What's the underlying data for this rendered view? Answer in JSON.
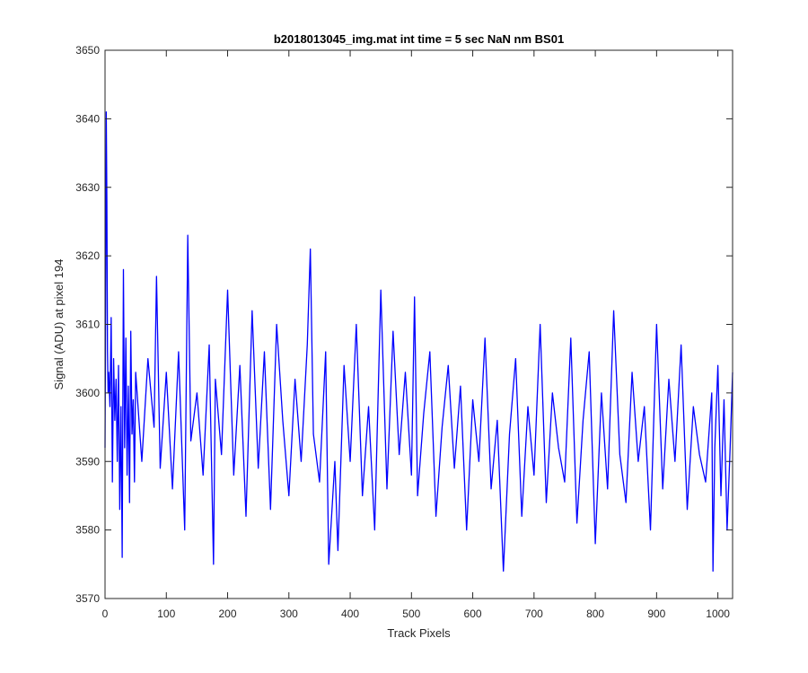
{
  "chart_data": {
    "type": "line",
    "title": "b2018013045_img.mat int time = 5 sec  NaN nm BS01",
    "xlabel": "Track Pixels",
    "ylabel": "Signal (ADU) at pixel 194",
    "xlim": [
      0,
      1024
    ],
    "ylim": [
      3570,
      3650
    ],
    "xticks": [
      0,
      100,
      200,
      300,
      400,
      500,
      600,
      700,
      800,
      900,
      1000
    ],
    "yticks": [
      3570,
      3580,
      3590,
      3600,
      3610,
      3620,
      3630,
      3640,
      3650
    ],
    "grid": false,
    "legend": "none",
    "series": [
      {
        "color": "#0000ff",
        "x": [
          0,
          1,
          2,
          3,
          4,
          5,
          6,
          8,
          10,
          12,
          14,
          16,
          18,
          20,
          22,
          24,
          26,
          28,
          30,
          32,
          34,
          36,
          38,
          40,
          42,
          44,
          46,
          48,
          50,
          60,
          70,
          80,
          84,
          90,
          100,
          110,
          120,
          130,
          135,
          140,
          150,
          160,
          170,
          177,
          180,
          190,
          200,
          210,
          220,
          230,
          240,
          250,
          260,
          270,
          280,
          290,
          300,
          310,
          320,
          330,
          335,
          340,
          350,
          360,
          365,
          375,
          380,
          390,
          400,
          410,
          420,
          430,
          440,
          450,
          460,
          470,
          480,
          490,
          500,
          505,
          510,
          520,
          530,
          540,
          550,
          560,
          570,
          580,
          590,
          600,
          610,
          620,
          630,
          640,
          650,
          660,
          670,
          680,
          690,
          700,
          710,
          720,
          730,
          740,
          750,
          760,
          770,
          780,
          790,
          800,
          810,
          820,
          830,
          840,
          850,
          860,
          870,
          880,
          890,
          900,
          910,
          920,
          930,
          940,
          950,
          960,
          970,
          980,
          990,
          992,
          995,
          1000,
          1005,
          1010,
          1015,
          1020,
          1024
        ],
        "values": [
          3592,
          3612,
          3641,
          3628,
          3606,
          3600,
          3603,
          3598,
          3611,
          3587,
          3605,
          3596,
          3602,
          3590,
          3604,
          3583,
          3598,
          3576,
          3618,
          3592,
          3608,
          3588,
          3601,
          3584,
          3609,
          3594,
          3599,
          3587,
          3603,
          3590,
          3605,
          3595,
          3617,
          3589,
          3603,
          3586,
          3606,
          3580,
          3623,
          3593,
          3600,
          3588,
          3607,
          3575,
          3602,
          3591,
          3615,
          3588,
          3604,
          3582,
          3612,
          3589,
          3606,
          3583,
          3610,
          3596,
          3585,
          3602,
          3590,
          3607,
          3621,
          3594,
          3587,
          3606,
          3575,
          3590,
          3577,
          3604,
          3590,
          3610,
          3585,
          3598,
          3580,
          3615,
          3586,
          3609,
          3591,
          3603,
          3588,
          3614,
          3585,
          3597,
          3606,
          3582,
          3595,
          3604,
          3589,
          3601,
          3580,
          3599,
          3590,
          3608,
          3586,
          3596,
          3574,
          3594,
          3605,
          3582,
          3598,
          3588,
          3610,
          3584,
          3600,
          3592,
          3587,
          3608,
          3581,
          3596,
          3606,
          3578,
          3600,
          3586,
          3612,
          3591,
          3584,
          3603,
          3590,
          3598,
          3580,
          3610,
          3586,
          3602,
          3590,
          3607,
          3583,
          3598,
          3591,
          3587,
          3600,
          3574,
          3592,
          3604,
          3585,
          3599,
          3580,
          3592,
          3603
        ]
      }
    ]
  }
}
